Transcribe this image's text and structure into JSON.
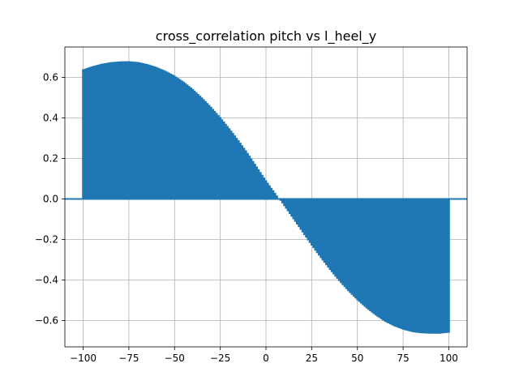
{
  "chart_data": {
    "type": "bar",
    "title": "cross_correlation pitch vs l_heel_y",
    "xlabel": "",
    "ylabel": "",
    "xlim": [
      -110,
      110
    ],
    "ylim": [
      -0.73,
      0.75
    ],
    "grid": true,
    "legend": "none",
    "color": "#1f77b4",
    "lag_range": [
      -100,
      100
    ],
    "baseline": 0.0,
    "xticks": [
      -100,
      -75,
      -50,
      -25,
      0,
      25,
      50,
      75,
      100
    ],
    "xtick_labels": [
      "−100",
      "−75",
      "−50",
      "−25",
      "0",
      "25",
      "50",
      "75",
      "100"
    ],
    "yticks": [
      -0.6,
      -0.4,
      -0.2,
      0.0,
      0.2,
      0.4,
      0.6
    ],
    "ytick_labels": [
      "−0.6",
      "−0.4",
      "−0.2",
      "0.0",
      "0.2",
      "0.4",
      "0.6"
    ],
    "x": [
      -100,
      -95,
      -90,
      -85,
      -80,
      -75,
      -70,
      -65,
      -60,
      -55,
      -50,
      -45,
      -40,
      -35,
      -30,
      -25,
      -20,
      -15,
      -10,
      -5,
      0,
      5,
      10,
      15,
      20,
      25,
      30,
      35,
      40,
      45,
      50,
      55,
      60,
      65,
      70,
      75,
      80,
      85,
      90,
      95,
      100
    ],
    "values": [
      0.64,
      0.655,
      0.667,
      0.675,
      0.679,
      0.68,
      0.676,
      0.666,
      0.652,
      0.633,
      0.609,
      0.579,
      0.543,
      0.501,
      0.455,
      0.404,
      0.349,
      0.29,
      0.227,
      0.16,
      0.092,
      0.03,
      -0.035,
      -0.1,
      -0.165,
      -0.23,
      -0.292,
      -0.35,
      -0.405,
      -0.455,
      -0.5,
      -0.54,
      -0.575,
      -0.605,
      -0.628,
      -0.645,
      -0.657,
      -0.663,
      -0.665,
      -0.665,
      -0.66
    ]
  }
}
